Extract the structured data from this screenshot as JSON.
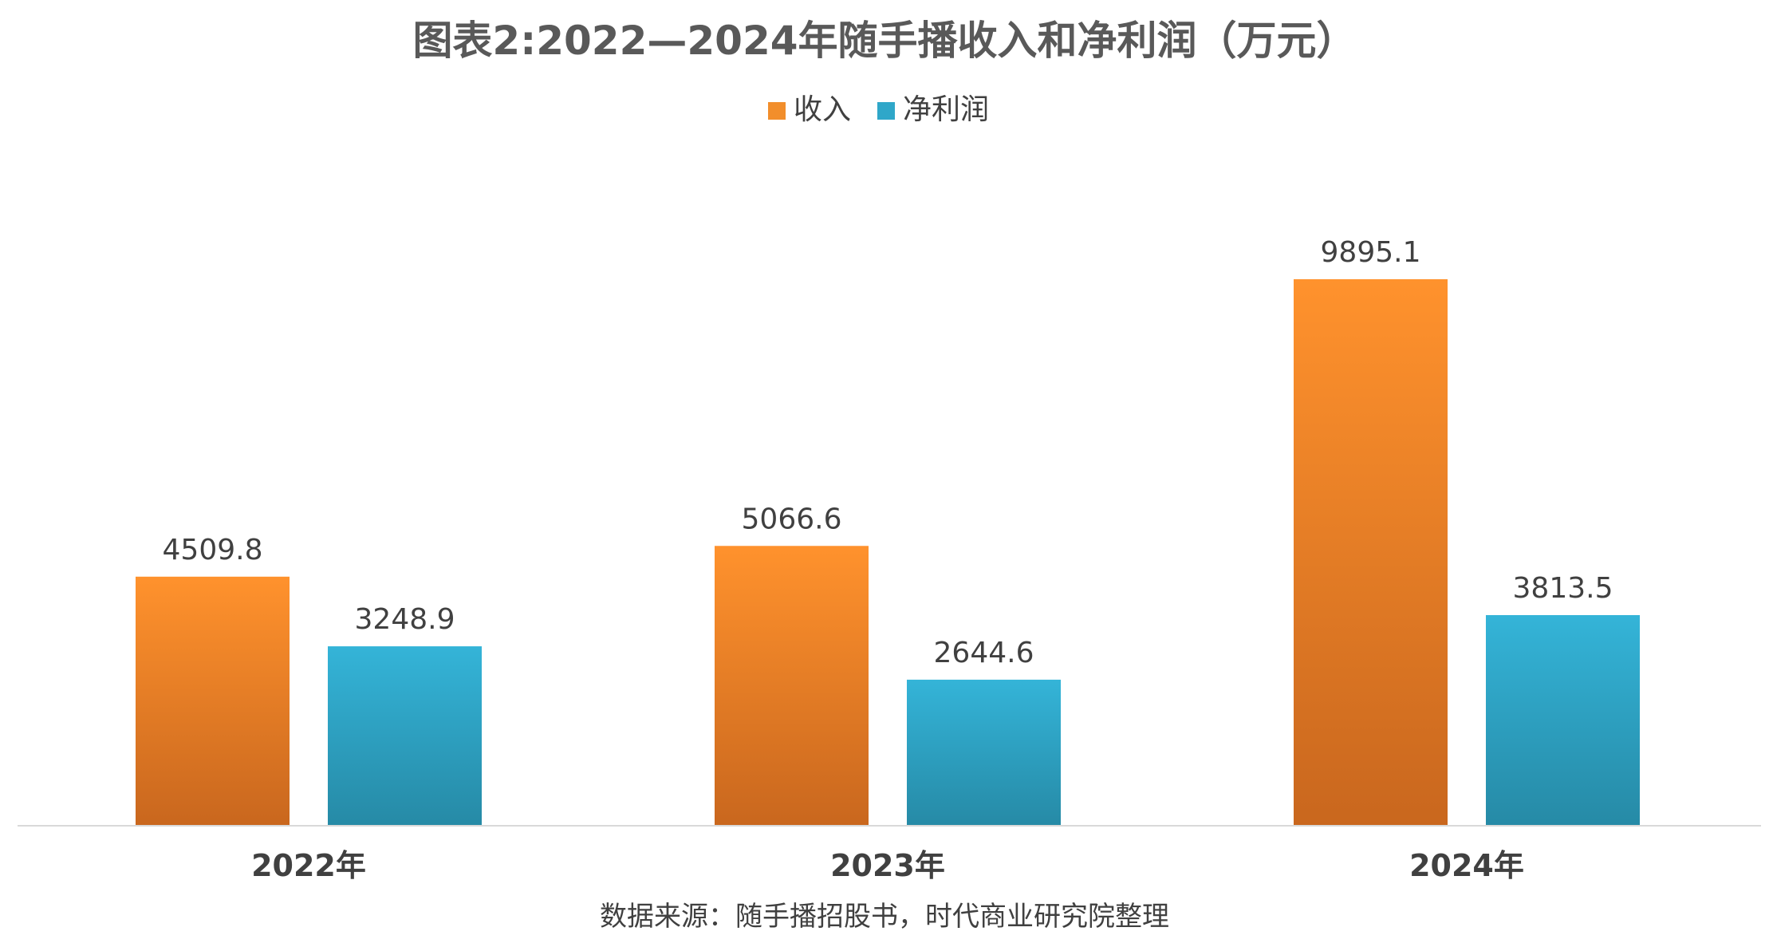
{
  "chart_data": {
    "type": "bar",
    "title": "图表2:2022—2024年随手播收入和净利润（万元）",
    "categories": [
      "2022年",
      "2023年",
      "2024年"
    ],
    "series": [
      {
        "name": "收入",
        "values": [
          4509.8,
          5066.6,
          9895.1
        ],
        "labels": [
          "4509.8",
          "5066.6",
          "9895.1"
        ],
        "color": "#F28E2B"
      },
      {
        "name": "净利润",
        "values": [
          3248.9,
          2644.6,
          3813.5
        ],
        "labels": [
          "3248.9",
          "2644.6",
          "3813.5"
        ],
        "color": "#2FA7C9"
      }
    ],
    "ylim": [
      0,
      11000
    ],
    "grid": false,
    "legend_position": "top-center",
    "xlabel": "",
    "ylabel": "",
    "source": "数据来源：随手播招股书，时代商业研究院整理"
  }
}
